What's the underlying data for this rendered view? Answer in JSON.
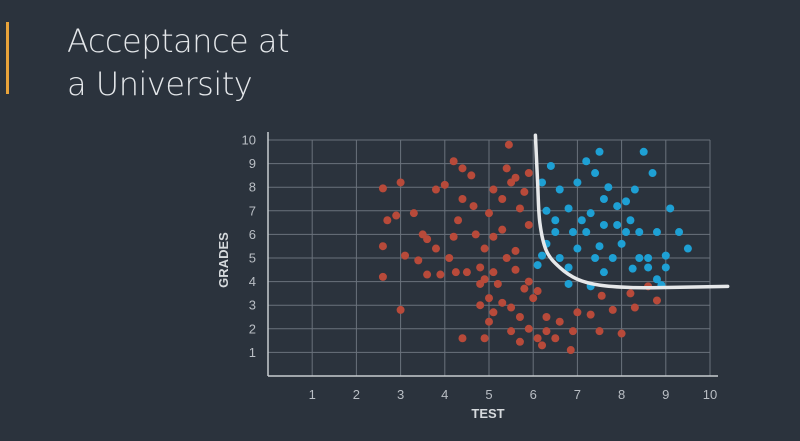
{
  "title": {
    "line1": "Acceptance at",
    "line2": "a University"
  },
  "colors": {
    "background": "#2b333d",
    "accent": "#e8a33a",
    "rejected": "#b84a3a",
    "accepted": "#1ea0d4",
    "grid": "#6a727c",
    "boundary": "#e6e8ea"
  },
  "chart_data": {
    "type": "scatter",
    "title": "",
    "xlabel": "TEST",
    "ylabel": "GRADES",
    "xlim": [
      0,
      10
    ],
    "ylim": [
      0,
      10
    ],
    "xticks": [
      1,
      2,
      3,
      4,
      5,
      6,
      7,
      8,
      9,
      10
    ],
    "yticks": [
      1,
      2,
      3,
      4,
      5,
      6,
      7,
      8,
      9,
      10
    ],
    "grid": true,
    "series": [
      {
        "color": "#b84a3a",
        "points": [
          [
            2.6,
            7.95
          ],
          [
            3.0,
            8.2
          ],
          [
            3.3,
            6.9
          ],
          [
            2.7,
            6.6
          ],
          [
            2.6,
            5.5
          ],
          [
            2.9,
            6.8
          ],
          [
            3.1,
            5.1
          ],
          [
            3.4,
            4.9
          ],
          [
            2.6,
            4.2
          ],
          [
            3.0,
            2.8
          ],
          [
            3.5,
            6.0
          ],
          [
            3.8,
            7.9
          ],
          [
            3.6,
            5.8
          ],
          [
            3.8,
            5.4
          ],
          [
            3.9,
            4.3
          ],
          [
            4.1,
            5.0
          ],
          [
            4.2,
            5.9
          ],
          [
            4.3,
            6.6
          ],
          [
            4.4,
            7.5
          ],
          [
            4.4,
            8.8
          ],
          [
            4.0,
            8.1
          ],
          [
            4.2,
            9.1
          ],
          [
            4.6,
            8.5
          ],
          [
            4.5,
            4.4
          ],
          [
            4.8,
            4.6
          ],
          [
            4.9,
            4.1
          ],
          [
            5.1,
            4.4
          ],
          [
            5.2,
            3.9
          ],
          [
            5.0,
            3.3
          ],
          [
            4.8,
            3.0
          ],
          [
            5.1,
            2.7
          ],
          [
            5.3,
            3.1
          ],
          [
            5.5,
            2.9
          ],
          [
            5.0,
            2.3
          ],
          [
            4.9,
            1.6
          ],
          [
            5.5,
            1.9
          ],
          [
            5.7,
            2.5
          ],
          [
            4.4,
            1.6
          ],
          [
            4.9,
            5.4
          ],
          [
            5.1,
            5.9
          ],
          [
            5.3,
            6.2
          ],
          [
            4.7,
            6.0
          ],
          [
            5.0,
            6.9
          ],
          [
            5.3,
            7.5
          ],
          [
            5.5,
            8.2
          ],
          [
            5.7,
            7.1
          ],
          [
            5.9,
            6.4
          ],
          [
            5.1,
            7.9
          ],
          [
            5.4,
            8.8
          ],
          [
            5.6,
            8.4
          ],
          [
            5.9,
            8.6
          ],
          [
            5.8,
            7.8
          ],
          [
            5.45,
            9.8
          ],
          [
            5.4,
            5.0
          ],
          [
            5.6,
            5.3
          ],
          [
            5.6,
            4.5
          ],
          [
            5.8,
            3.7
          ],
          [
            5.9,
            4.0
          ],
          [
            6.0,
            3.3
          ],
          [
            6.1,
            3.6
          ],
          [
            5.9,
            2.0
          ],
          [
            6.1,
            1.6
          ],
          [
            6.3,
            2.5
          ],
          [
            6.3,
            1.9
          ],
          [
            6.6,
            2.3
          ],
          [
            6.5,
            1.6
          ],
          [
            6.85,
            1.1
          ],
          [
            6.9,
            1.9
          ],
          [
            7.0,
            2.7
          ],
          [
            7.3,
            2.6
          ],
          [
            7.5,
            1.9
          ],
          [
            7.8,
            2.8
          ],
          [
            8.0,
            1.8
          ],
          [
            8.3,
            2.9
          ],
          [
            8.2,
            3.5
          ],
          [
            8.6,
            3.8
          ],
          [
            8.8,
            3.2
          ],
          [
            7.55,
            3.4
          ],
          [
            4.65,
            7.2
          ],
          [
            4.25,
            4.4
          ],
          [
            4.8,
            3.9
          ],
          [
            6.2,
            1.3
          ],
          [
            5.7,
            1.45
          ],
          [
            3.6,
            4.3
          ]
        ]
      },
      {
        "color": "#1ea0d4",
        "points": [
          [
            6.2,
            8.2
          ],
          [
            6.4,
            8.9
          ],
          [
            6.3,
            7.0
          ],
          [
            6.6,
            7.9
          ],
          [
            6.8,
            7.1
          ],
          [
            7.0,
            8.2
          ],
          [
            7.2,
            9.1
          ],
          [
            7.4,
            8.6
          ],
          [
            7.5,
            9.5
          ],
          [
            7.7,
            8.0
          ],
          [
            7.6,
            7.5
          ],
          [
            7.9,
            7.2
          ],
          [
            8.1,
            7.4
          ],
          [
            8.3,
            7.9
          ],
          [
            8.5,
            9.5
          ],
          [
            8.7,
            8.6
          ],
          [
            9.1,
            7.1
          ],
          [
            9.3,
            6.1
          ],
          [
            9.5,
            5.4
          ],
          [
            6.3,
            5.6
          ],
          [
            6.5,
            6.1
          ],
          [
            6.6,
            5.0
          ],
          [
            6.8,
            4.6
          ],
          [
            7.0,
            5.4
          ],
          [
            7.2,
            6.1
          ],
          [
            7.4,
            5.0
          ],
          [
            7.6,
            4.4
          ],
          [
            7.8,
            5.0
          ],
          [
            8.0,
            5.6
          ],
          [
            8.2,
            6.6
          ],
          [
            8.4,
            5.0
          ],
          [
            8.6,
            4.6
          ],
          [
            8.8,
            4.1
          ],
          [
            9.0,
            5.1
          ],
          [
            7.1,
            6.6
          ],
          [
            7.6,
            6.4
          ],
          [
            8.1,
            6.1
          ],
          [
            8.4,
            6.1
          ],
          [
            8.8,
            6.1
          ],
          [
            6.5,
            6.6
          ],
          [
            6.9,
            6.1
          ],
          [
            7.3,
            6.9
          ],
          [
            7.9,
            6.4
          ],
          [
            8.6,
            5.0
          ],
          [
            9.0,
            4.6
          ],
          [
            6.8,
            3.9
          ],
          [
            7.3,
            3.8
          ],
          [
            6.2,
            5.1
          ],
          [
            6.1,
            4.7
          ],
          [
            7.5,
            5.5
          ],
          [
            8.25,
            4.55
          ],
          [
            8.9,
            3.85
          ]
        ]
      }
    ],
    "boundary": [
      [
        6.05,
        10.2
      ],
      [
        6.1,
        8.2
      ],
      [
        6.15,
        6.5
      ],
      [
        6.3,
        5.3
      ],
      [
        6.6,
        4.6
      ],
      [
        7.0,
        4.1
      ],
      [
        7.5,
        3.85
      ],
      [
        8.2,
        3.75
      ],
      [
        9.0,
        3.75
      ],
      [
        10.4,
        3.8
      ]
    ]
  }
}
